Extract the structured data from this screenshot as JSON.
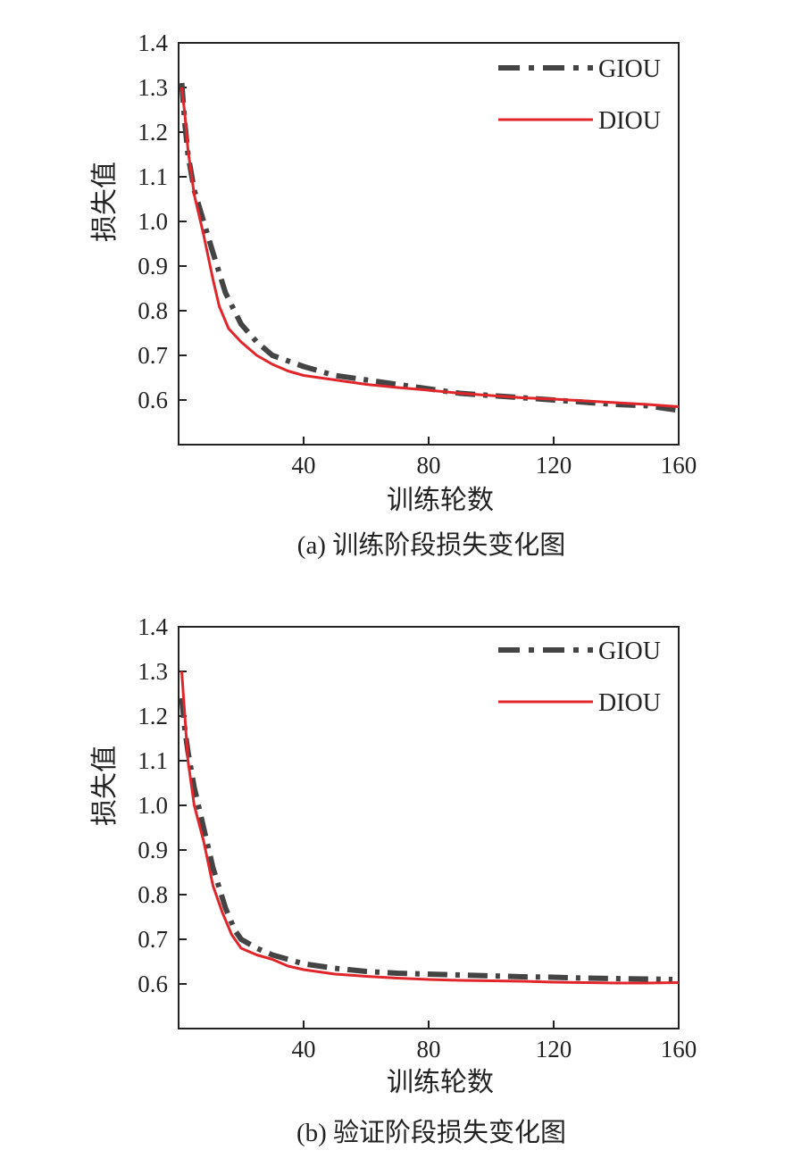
{
  "chart_data": [
    {
      "type": "line",
      "title": "",
      "caption": "(a) 训练阶段损失变化图",
      "xlabel": "训练轮数",
      "ylabel": "损失值",
      "xlim": [
        0,
        160
      ],
      "ylim": [
        0.5,
        1.4
      ],
      "xticks": [
        "40",
        "80",
        "120",
        "160"
      ],
      "yticks": [
        "0.6",
        "0.7",
        "0.8",
        "0.9",
        "1.0",
        "1.1",
        "1.2",
        "1.3",
        "1.4"
      ],
      "xtick_values": [
        40,
        80,
        120,
        160
      ],
      "ytick_values": [
        0.6,
        0.7,
        0.8,
        0.9,
        1.0,
        1.1,
        1.2,
        1.3,
        1.4
      ],
      "legend_position": "top-right",
      "series": [
        {
          "name": "GIOU",
          "style": "dashdot",
          "color": "#444444",
          "x": [
            1,
            2,
            3,
            5,
            8,
            11,
            15,
            20,
            25,
            30,
            40,
            50,
            60,
            70,
            80,
            90,
            100,
            110,
            120,
            130,
            140,
            150,
            160
          ],
          "y": [
            1.31,
            1.22,
            1.15,
            1.07,
            1.0,
            0.93,
            0.84,
            0.77,
            0.73,
            0.7,
            0.675,
            0.655,
            0.645,
            0.635,
            0.625,
            0.615,
            0.61,
            0.605,
            0.6,
            0.595,
            0.59,
            0.587,
            0.577
          ]
        },
        {
          "name": "DIOU",
          "style": "solid",
          "color": "#e0262b",
          "x": [
            1,
            2,
            3,
            5,
            8,
            11,
            13,
            16,
            20,
            25,
            30,
            35,
            40,
            50,
            60,
            70,
            80,
            90,
            100,
            110,
            120,
            130,
            140,
            150,
            160
          ],
          "y": [
            1.3,
            1.24,
            1.16,
            1.06,
            0.97,
            0.87,
            0.81,
            0.76,
            0.73,
            0.7,
            0.68,
            0.665,
            0.655,
            0.645,
            0.635,
            0.628,
            0.622,
            0.615,
            0.61,
            0.605,
            0.602,
            0.598,
            0.594,
            0.59,
            0.585
          ]
        }
      ]
    },
    {
      "type": "line",
      "title": "",
      "caption": "(b) 验证阶段损失变化图",
      "xlabel": "训练轮数",
      "ylabel": "损失值",
      "xlim": [
        0,
        160
      ],
      "ylim": [
        0.5,
        1.4
      ],
      "xticks": [
        "40",
        "80",
        "120",
        "160"
      ],
      "yticks": [
        "0.6",
        "0.7",
        "0.8",
        "0.9",
        "1.0",
        "1.1",
        "1.2",
        "1.3",
        "1.4"
      ],
      "xtick_values": [
        40,
        80,
        120,
        160
      ],
      "ytick_values": [
        0.6,
        0.7,
        0.8,
        0.9,
        1.0,
        1.1,
        1.2,
        1.3,
        1.4
      ],
      "legend_position": "top-right",
      "series": [
        {
          "name": "GIOU",
          "style": "dashdot",
          "color": "#444444",
          "x": [
            1,
            2,
            3,
            5,
            8,
            11,
            15,
            18,
            20,
            25,
            30,
            40,
            50,
            60,
            70,
            80,
            90,
            100,
            110,
            120,
            130,
            140,
            150,
            158
          ],
          "y": [
            1.24,
            1.17,
            1.12,
            1.04,
            0.95,
            0.86,
            0.77,
            0.72,
            0.7,
            0.68,
            0.665,
            0.645,
            0.635,
            0.628,
            0.624,
            0.622,
            0.62,
            0.618,
            0.616,
            0.615,
            0.613,
            0.612,
            0.611,
            0.61
          ]
        },
        {
          "name": "DIOU",
          "style": "solid",
          "color": "#e0262b",
          "x": [
            1,
            2,
            3,
            5,
            8,
            11,
            14,
            17,
            20,
            25,
            30,
            35,
            40,
            50,
            60,
            70,
            80,
            90,
            100,
            110,
            120,
            130,
            140,
            150,
            160
          ],
          "y": [
            1.3,
            1.2,
            1.1,
            1.0,
            0.92,
            0.82,
            0.76,
            0.71,
            0.68,
            0.665,
            0.655,
            0.64,
            0.632,
            0.622,
            0.617,
            0.613,
            0.61,
            0.608,
            0.607,
            0.606,
            0.604,
            0.603,
            0.602,
            0.602,
            0.603
          ]
        }
      ]
    }
  ]
}
